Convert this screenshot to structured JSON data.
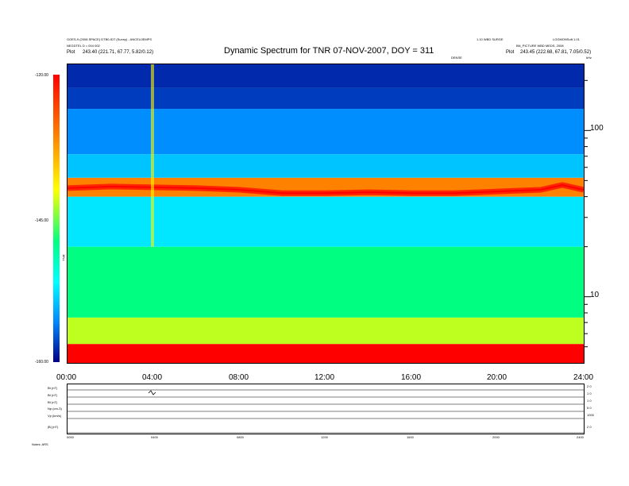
{
  "header": {
    "left_line1": "GOES-9 (2008 SPACE) DTB0-IDT (Sunny) - ANCEUJEMPS",
    "left_line2": "NEGDTEL D = 004 002",
    "left_line3_label": "Plot",
    "left_line3_value": "243.40 (221.71, 67.77, 5.82/0.12)",
    "right_line1a": "1.10 WBD SURGE",
    "right_line1b": "LOGMONSoft 1.01",
    "right_line2": "BN_PICTURE WBD MEDS, 2008",
    "right_line3_label": "Plot",
    "right_line3_value": "243.45 (222.68, 67.81, 7.05/0.52)",
    "title": "Dynamic Spectrum for TNR 07-NOV-2007, DOY = 311",
    "sublabel": "DENSE",
    "unit_label": "kHz"
  },
  "colorbar": {
    "top_label": "-120.00",
    "mid_label": "-145.00",
    "bottom_label": "-160.00",
    "side_label": "TNR",
    "colors": [
      "#ff0000",
      "#ff7a00",
      "#ffff00",
      "#00ff80",
      "#00ffff",
      "#0088ff",
      "#000088"
    ]
  },
  "chart_data": {
    "type": "heatmap",
    "title": "Dynamic Spectrum for TNR 07-NOV-2007, DOY = 311",
    "x_ticks": [
      "00:00",
      "04:00",
      "08:00",
      "12:00",
      "16:00",
      "20:00",
      "24:00"
    ],
    "x_range_hours": [
      0,
      24
    ],
    "y_scale": "log",
    "y_range_khz": [
      4,
      250
    ],
    "y_ticks": [
      {
        "value": 100,
        "label": "100"
      },
      {
        "value": 10,
        "label": "10"
      }
    ],
    "y_unit": "kHz",
    "colorbar_range": [
      -160,
      -120
    ],
    "bands": [
      {
        "from_khz": 4,
        "to_khz": 5.2,
        "level": -120
      },
      {
        "from_khz": 5.2,
        "to_khz": 7.5,
        "level": -135
      },
      {
        "from_khz": 7.5,
        "to_khz": 20,
        "level": -140
      },
      {
        "from_khz": 20,
        "to_khz": 40,
        "level": -148
      },
      {
        "from_khz": 40,
        "to_khz": 52,
        "level": -127
      },
      {
        "from_khz": 52,
        "to_khz": 72,
        "level": -150
      },
      {
        "from_khz": 72,
        "to_khz": 135,
        "level": -153
      },
      {
        "from_khz": 135,
        "to_khz": 180,
        "level": -157
      },
      {
        "from_khz": 180,
        "to_khz": 250,
        "level": -158
      }
    ],
    "emission_line_khz": [
      {
        "t": 0,
        "f": 45
      },
      {
        "t": 2,
        "f": 46
      },
      {
        "t": 4,
        "f": 45.5
      },
      {
        "t": 6,
        "f": 45
      },
      {
        "t": 8,
        "f": 44
      },
      {
        "t": 10,
        "f": 42
      },
      {
        "t": 12,
        "f": 42
      },
      {
        "t": 14,
        "f": 42.5
      },
      {
        "t": 16,
        "f": 42
      },
      {
        "t": 18,
        "f": 42
      },
      {
        "t": 20,
        "f": 43
      },
      {
        "t": 22,
        "f": 44
      },
      {
        "t": 23,
        "f": 47
      },
      {
        "t": 24,
        "f": 44
      }
    ],
    "burst_time_hours": 3.95
  },
  "line_panel": {
    "rows": [
      {
        "label": "Bt (nT)",
        "right": "2 0"
      },
      {
        "label": "Bt (nT)",
        "right": "1 0"
      },
      {
        "label": "Bt (nT)",
        "right": "1 0"
      },
      {
        "label": "Np (cm-3)",
        "right": "5 0"
      },
      {
        "label": "Vp (km/s)",
        "right": "1000"
      },
      {
        "label": "|B| (nT)",
        "right": "2 0"
      }
    ],
    "x_ticks": [
      "0000",
      "0400",
      "0800",
      "1200",
      "1600",
      "2000",
      "2400"
    ],
    "footer": "Notes:  ARS"
  }
}
